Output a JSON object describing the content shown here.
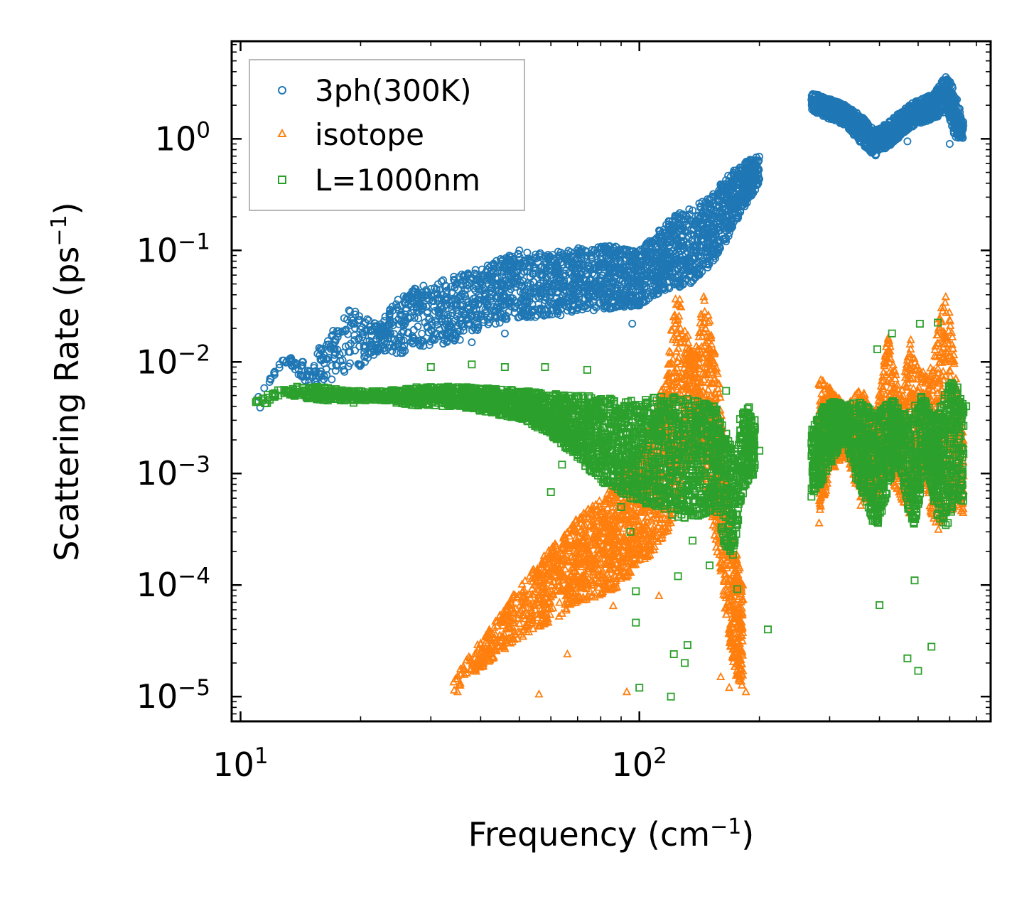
{
  "chart_data": {
    "type": "scatter",
    "xscale": "log",
    "yscale": "log",
    "xlim": [
      9.5,
      760
    ],
    "ylim": [
      6e-06,
      7.5
    ],
    "xlabel": {
      "text": "Frequency (cm",
      "sup": "−1",
      "tail": ")"
    },
    "ylabel": {
      "text": "Scattering Rate (ps",
      "sup": "−1",
      "tail": ")"
    },
    "x_ticks": [
      {
        "base": "10",
        "exp": "1",
        "value": 10
      },
      {
        "base": "10",
        "exp": "2",
        "value": 100
      }
    ],
    "y_ticks": [
      {
        "base": "10",
        "exp": "0",
        "value": 1
      },
      {
        "base": "10",
        "exp": "−1",
        "value": 0.1
      },
      {
        "base": "10",
        "exp": "−2",
        "value": 0.01
      },
      {
        "base": "10",
        "exp": "−3",
        "value": 0.001
      },
      {
        "base": "10",
        "exp": "−4",
        "value": 0.0001
      },
      {
        "base": "10",
        "exp": "−5",
        "value": 1e-05
      }
    ],
    "legend_position": "upper-left",
    "series": [
      {
        "name": "3ph(300K)",
        "marker": "circle",
        "color": "#1f77b4",
        "envelope": [
          [
            10.8,
            0.004,
            0.0045
          ],
          [
            12.8,
            0.01,
            0.011
          ],
          [
            15,
            0.006,
            0.011
          ],
          [
            19,
            0.008,
            0.03
          ],
          [
            22,
            0.012,
            0.022
          ],
          [
            26,
            0.012,
            0.045
          ],
          [
            30,
            0.014,
            0.05
          ],
          [
            35,
            0.015,
            0.06
          ],
          [
            40,
            0.02,
            0.07
          ],
          [
            50,
            0.025,
            0.1
          ],
          [
            60,
            0.025,
            0.095
          ],
          [
            70,
            0.028,
            0.105
          ],
          [
            85,
            0.03,
            0.11
          ],
          [
            100,
            0.032,
            0.1
          ],
          [
            110,
            0.04,
            0.14
          ],
          [
            120,
            0.045,
            0.2
          ],
          [
            135,
            0.05,
            0.24
          ],
          [
            150,
            0.07,
            0.3
          ],
          [
            165,
            0.12,
            0.45
          ],
          [
            180,
            0.22,
            0.6
          ],
          [
            200,
            0.4,
            0.72
          ]
        ],
        "clusters": [
          {
            "x": [
              270,
              300,
              330,
              360,
              390,
              430,
              470,
              510,
              550,
              590,
              620,
              650
            ],
            "lo": [
              1.8,
              1.5,
              1.3,
              0.9,
              0.7,
              0.9,
              1.2,
              1.4,
              1.5,
              1.8,
              1.0,
              1.0
            ],
            "hi": [
              2.6,
              2.3,
              2.0,
              1.6,
              1.2,
              1.5,
              2.0,
              2.3,
              2.6,
              3.8,
              2.6,
              1.4
            ]
          }
        ],
        "outliers": [
          [
            11.2,
            0.0039
          ],
          [
            13.3,
            0.0107
          ],
          [
            15.8,
            0.0115
          ],
          [
            18.7,
            0.029
          ],
          [
            22.5,
            0.02
          ],
          [
            24,
            0.0125
          ],
          [
            27.5,
            0.045
          ],
          [
            31,
            0.018
          ],
          [
            38,
            0.015
          ],
          [
            46,
            0.018
          ],
          [
            50,
            0.1
          ],
          [
            96,
            0.022
          ],
          [
            125,
            0.2
          ],
          [
            155,
            0.085
          ],
          [
            470,
            0.95
          ],
          [
            600,
            0.9
          ]
        ]
      },
      {
        "name": "isotope",
        "marker": "triangle",
        "color": "#ff7f0e",
        "envelope": [
          [
            34,
            1.1e-05,
            1.4e-05
          ],
          [
            38,
            1.5e-05,
            2.5e-05
          ],
          [
            42,
            2e-05,
            4e-05
          ],
          [
            48,
            3e-05,
            8e-05
          ],
          [
            55,
            4e-05,
            0.00015
          ],
          [
            62,
            5e-05,
            0.00025
          ],
          [
            70,
            7e-05,
            0.0004
          ],
          [
            80,
            8e-05,
            0.0006
          ],
          [
            90,
            0.0001,
            0.001
          ],
          [
            100,
            0.00015,
            0.0015
          ],
          [
            110,
            0.0002,
            0.004
          ],
          [
            118,
            0.0003,
            0.01
          ],
          [
            124,
            0.0005,
            0.06
          ],
          [
            130,
            0.001,
            0.02
          ],
          [
            138,
            0.0015,
            0.012
          ],
          [
            145,
            0.0008,
            0.04
          ],
          [
            152,
            0.0004,
            0.02
          ],
          [
            160,
            0.00012,
            0.005
          ],
          [
            168,
            3e-05,
            0.0004
          ],
          [
            175,
            1.5e-05,
            0.0002
          ],
          [
            182,
            1.2e-05,
            0.0001
          ]
        ],
        "clusters": [
          {
            "x": [
              280,
              300,
              330,
              360,
              390,
              420,
              450,
              480,
              500,
              530,
              560,
              590,
              620,
              650
            ],
            "lo": [
              0.0003,
              0.001,
              0.0015,
              0.0005,
              0.0006,
              0.001,
              0.0006,
              0.0004,
              0.001,
              0.0005,
              0.0003,
              0.0004,
              0.0005,
              0.0004
            ],
            "hi": [
              0.008,
              0.006,
              0.004,
              0.006,
              0.003,
              0.018,
              0.005,
              0.02,
              0.01,
              0.007,
              0.025,
              0.045,
              0.01,
              0.002
            ]
          }
        ],
        "outliers": [
          [
            35,
            1.1e-05
          ],
          [
            56,
            1.05e-05
          ],
          [
            66,
            2.4e-05
          ],
          [
            70,
            0.00019
          ],
          [
            93,
            1.1e-05
          ],
          [
            76,
            8e-05
          ],
          [
            86,
            6.5e-05
          ],
          [
            112,
            8e-05
          ],
          [
            160,
            1.5e-05
          ],
          [
            168,
            1.2e-05
          ],
          [
            185,
            1.1e-05
          ]
        ]
      },
      {
        "name": "L=1000nm",
        "marker": "square",
        "color": "#2ca02c",
        "envelope": [
          [
            10.8,
            0.0038,
            0.0045
          ],
          [
            13,
            0.005,
            0.006
          ],
          [
            16,
            0.0045,
            0.006
          ],
          [
            19,
            0.0045,
            0.0055
          ],
          [
            23,
            0.0045,
            0.0055
          ],
          [
            28,
            0.004,
            0.006
          ],
          [
            35,
            0.004,
            0.006
          ],
          [
            42,
            0.0035,
            0.0058
          ],
          [
            52,
            0.003,
            0.0055
          ],
          [
            62,
            0.002,
            0.0052
          ],
          [
            72,
            0.0012,
            0.005
          ],
          [
            82,
            0.0008,
            0.0048
          ],
          [
            95,
            0.0006,
            0.0045
          ],
          [
            110,
            0.0005,
            0.005
          ],
          [
            125,
            0.0004,
            0.005
          ],
          [
            140,
            0.0004,
            0.0045
          ],
          [
            155,
            0.0005,
            0.004
          ],
          [
            165,
            0.0002,
            0.0025
          ],
          [
            172,
            0.00018,
            0.0015
          ],
          [
            180,
            0.0006,
            0.0035
          ],
          [
            188,
            0.0009,
            0.004
          ],
          [
            195,
            0.001,
            0.003
          ]
        ],
        "clusters": [
          {
            "x": [
              270,
              290,
              310,
              330,
              350,
              370,
              390,
              410,
              430,
              450,
              470,
              490,
              510,
              530,
              560,
              590,
              620,
              650
            ],
            "lo": [
              0.0006,
              0.0009,
              0.0015,
              0.002,
              0.0008,
              0.0006,
              0.0003,
              0.0005,
              0.001,
              0.0012,
              0.0005,
              0.0003,
              0.0008,
              0.001,
              0.0004,
              0.0003,
              0.0006,
              0.0005
            ],
            "hi": [
              0.0025,
              0.004,
              0.0045,
              0.004,
              0.0045,
              0.004,
              0.0035,
              0.004,
              0.0045,
              0.0042,
              0.0035,
              0.004,
              0.005,
              0.004,
              0.0035,
              0.006,
              0.007,
              0.004
            ]
          }
        ],
        "outliers": [
          [
            11,
            0.0045
          ],
          [
            13,
            0.0055
          ],
          [
            15.8,
            0.0046
          ],
          [
            19.2,
            0.0043
          ],
          [
            24.6,
            0.0043
          ],
          [
            30,
            0.009
          ],
          [
            38,
            0.0095
          ],
          [
            46,
            0.009
          ],
          [
            58,
            0.009
          ],
          [
            74,
            0.0085
          ],
          [
            60,
            0.00068
          ],
          [
            64,
            0.0012
          ],
          [
            83,
            0.0013
          ],
          [
            90,
            0.0005
          ],
          [
            95,
            0.0003
          ],
          [
            98,
            4.6e-05
          ],
          [
            100,
            1.2e-05
          ],
          [
            98,
            8.8e-05
          ],
          [
            120,
            1e-05
          ],
          [
            122,
            2.4e-05
          ],
          [
            125,
            0.00012
          ],
          [
            130,
            2e-05
          ],
          [
            132,
            2.9e-05
          ],
          [
            136,
            0.00025
          ],
          [
            150,
            0.00015
          ],
          [
            165,
            0.0055
          ],
          [
            176,
            9.2e-05
          ],
          [
            210,
            4e-05
          ],
          [
            200,
            0.0016
          ],
          [
            400,
            6.6e-05
          ],
          [
            470,
            2.2e-05
          ],
          [
            500,
            1.7e-05
          ],
          [
            540,
            2.8e-05
          ],
          [
            490,
            0.00011
          ],
          [
            620,
            0.0029
          ],
          [
            660,
            0.004
          ],
          [
            395,
            0.013
          ],
          [
            430,
            0.018
          ],
          [
            505,
            0.022
          ],
          [
            560,
            0.0225
          ]
        ]
      }
    ]
  }
}
